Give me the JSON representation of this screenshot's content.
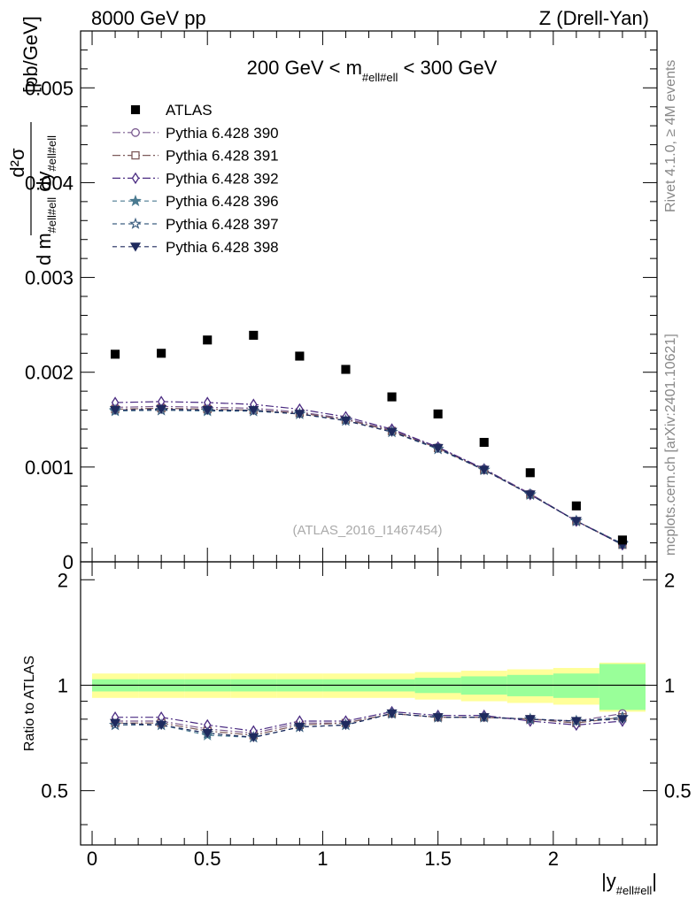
{
  "header": {
    "left": "8000 GeV pp",
    "right": "Z (Drell-Yan)"
  },
  "side": {
    "rivet": "Rivet 4.1.0, ≥ 4M events",
    "mcplots": "mcplots.cern.ch [arXiv:2401.10621]"
  },
  "chart_data": {
    "type": "scatter",
    "title": "200 GeV < m_#ell#ell < 300 GeV",
    "title_parts": {
      "pre": "200 GeV < m",
      "sub": "#ell#ell",
      "post": " < 300 GeV"
    },
    "watermark": "(ATLAS_2016_I1467454)",
    "xlabel": "|y_#ell#ell|",
    "xlabel_parts": {
      "pre": "|y",
      "sub": "#ell#ell",
      "post": "|"
    },
    "ylabel": "d²σ / d m_#ell#ell dy_#ell#ell [pb/GeV]",
    "ylabel_parts": {
      "num": "d²σ",
      "den_pre": "d m",
      "den_sub": "#ell#ell",
      "den_mid": " dy",
      "den_sub2": "#ell#ell",
      "unit": "[pb/GeV]"
    },
    "ratio_ylabel": "Ratio to ATLAS",
    "xlim": [
      -0.05,
      2.45
    ],
    "ylim": [
      0,
      0.0056
    ],
    "ratio_ylim": [
      0.35,
      2.25
    ],
    "x_ticks": [
      0,
      0.5,
      1,
      1.5,
      2
    ],
    "x_tick_labels": [
      "0",
      "0.5",
      "1",
      "1.5",
      "2"
    ],
    "y_ticks": [
      0,
      0.001,
      0.002,
      0.003,
      0.004,
      0.005
    ],
    "y_tick_labels": [
      "0",
      "0.001",
      "0.002",
      "0.003",
      "0.004",
      "0.005"
    ],
    "ratio_ticks": [
      0.5,
      1,
      2
    ],
    "ratio_tick_labels": [
      "0.5",
      "1",
      "2"
    ],
    "x": [
      0.1,
      0.3,
      0.5,
      0.7,
      0.9,
      1.1,
      1.3,
      1.5,
      1.7,
      1.9,
      2.1,
      2.3
    ],
    "x_edges": [
      0.0,
      0.2,
      0.4,
      0.6,
      0.8,
      1.0,
      1.2,
      1.4,
      1.6,
      1.8,
      2.0,
      2.2,
      2.4
    ],
    "data": {
      "name": "ATLAS",
      "values": [
        0.00219,
        0.0022,
        0.00234,
        0.00239,
        0.00217,
        0.00203,
        0.00174,
        0.00156,
        0.00126,
        0.00094,
        0.00059,
        0.00023
      ],
      "band_yellow": [
        0.08,
        0.08,
        0.08,
        0.08,
        0.08,
        0.08,
        0.08,
        0.09,
        0.1,
        0.11,
        0.12,
        0.16
      ],
      "band_green": [
        0.04,
        0.04,
        0.04,
        0.04,
        0.04,
        0.04,
        0.04,
        0.05,
        0.06,
        0.07,
        0.08,
        0.15
      ]
    },
    "series": [
      {
        "name": "Pythia 6.428 390",
        "color": "#7a5a8f",
        "marker": "circle-open",
        "dash": "9,3,2,3",
        "values": [
          0.00163,
          0.00164,
          0.00163,
          0.00162,
          0.00158,
          0.00151,
          0.00139,
          0.00121,
          0.00098,
          0.00072,
          0.00043,
          0.00019
        ],
        "ratio": [
          0.79,
          0.79,
          0.75,
          0.73,
          0.78,
          0.78,
          0.83,
          0.81,
          0.81,
          0.8,
          0.79,
          0.83
        ]
      },
      {
        "name": "Pythia 6.428 391",
        "color": "#7d5a5a",
        "marker": "square-open",
        "dash": "9,3,2,3",
        "values": [
          0.00161,
          0.00162,
          0.00161,
          0.0016,
          0.00157,
          0.0015,
          0.00138,
          0.0012,
          0.00097,
          0.00071,
          0.00043,
          0.00018
        ],
        "ratio": [
          0.78,
          0.78,
          0.74,
          0.72,
          0.77,
          0.78,
          0.83,
          0.81,
          0.81,
          0.8,
          0.78,
          0.81
        ]
      },
      {
        "name": "Pythia 6.428 392",
        "color": "#4b2c82",
        "marker": "diamond-open",
        "dash": "9,3,2,3",
        "values": [
          0.00168,
          0.00169,
          0.00168,
          0.00166,
          0.00161,
          0.00153,
          0.0014,
          0.00121,
          0.00098,
          0.00071,
          0.00043,
          0.00018
        ],
        "ratio": [
          0.81,
          0.81,
          0.77,
          0.74,
          0.79,
          0.79,
          0.84,
          0.82,
          0.82,
          0.79,
          0.77,
          0.79
        ]
      },
      {
        "name": "Pythia 6.428 396",
        "color": "#4a7a90",
        "marker": "star-filled",
        "dash": "5,4",
        "values": [
          0.00159,
          0.0016,
          0.00159,
          0.00159,
          0.00156,
          0.00149,
          0.00137,
          0.00119,
          0.00097,
          0.00071,
          0.00043,
          0.00019
        ],
        "ratio": [
          0.77,
          0.77,
          0.72,
          0.71,
          0.76,
          0.77,
          0.83,
          0.81,
          0.81,
          0.8,
          0.79,
          0.81
        ]
      },
      {
        "name": "Pythia 6.428 397",
        "color": "#3e5f80",
        "marker": "star-open",
        "dash": "5,4",
        "values": [
          0.0016,
          0.0016,
          0.0016,
          0.00159,
          0.00156,
          0.00149,
          0.00137,
          0.00119,
          0.00097,
          0.00071,
          0.00043,
          0.00019
        ],
        "ratio": [
          0.77,
          0.77,
          0.73,
          0.71,
          0.76,
          0.77,
          0.83,
          0.81,
          0.81,
          0.8,
          0.79,
          0.81
        ]
      },
      {
        "name": "Pythia 6.428 398",
        "color": "#1f2a5e",
        "marker": "triangle-down-filled",
        "dash": "5,4",
        "values": [
          0.0016,
          0.00161,
          0.0016,
          0.0016,
          0.00156,
          0.00149,
          0.00137,
          0.0012,
          0.00097,
          0.00071,
          0.00043,
          0.00018
        ],
        "ratio": [
          0.78,
          0.77,
          0.73,
          0.71,
          0.76,
          0.77,
          0.83,
          0.81,
          0.81,
          0.8,
          0.79,
          0.8
        ]
      }
    ]
  }
}
